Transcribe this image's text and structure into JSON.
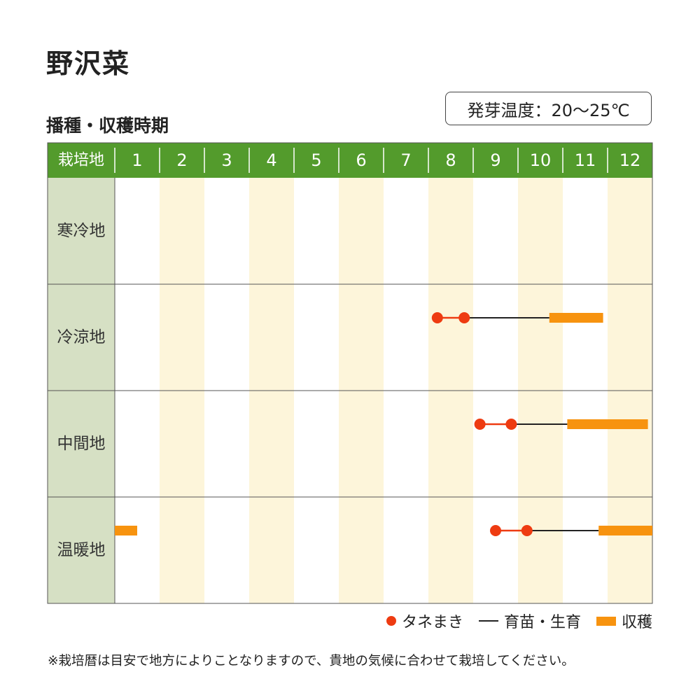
{
  "title": "野沢菜",
  "subtitle": "播種・収穫時期",
  "germination": "発芽温度：20〜25℃",
  "chart_data": {
    "type": "table",
    "header_label": "栽培地",
    "months": [
      "1",
      "2",
      "3",
      "4",
      "5",
      "6",
      "7",
      "8",
      "9",
      "10",
      "11",
      "12"
    ],
    "rows": [
      {
        "region": "寒冷地",
        "sowing": [],
        "growing": null,
        "harvest": []
      },
      {
        "region": "冷涼地",
        "sowing": [
          8.2,
          8.8
        ],
        "growing": [
          8.8,
          10.7
        ],
        "harvest": [
          [
            10.7,
            11.9
          ]
        ]
      },
      {
        "region": "中間地",
        "sowing": [
          9.15,
          9.85
        ],
        "growing": [
          9.85,
          11.1
        ],
        "harvest": [
          [
            11.1,
            12.9
          ]
        ]
      },
      {
        "region": "温暖地",
        "sowing": [
          9.5,
          10.2
        ],
        "growing": [
          10.2,
          11.8
        ],
        "harvest": [
          [
            1.0,
            1.5
          ],
          [
            11.8,
            13.0
          ]
        ]
      }
    ],
    "colors": {
      "header": "#539b2c",
      "region_cell": "#d6e0c4",
      "stripe": "#fdf5da",
      "sowing": "#ee3b11",
      "growing": "#222222",
      "harvest": "#f7930f"
    }
  },
  "legend": {
    "sowing": "タネまき",
    "growing": "育苗・生育",
    "harvest": "収穫"
  },
  "note": "※栽培暦は目安で地方によりことなりますので、貴地の気候に合わせて栽培してください。"
}
